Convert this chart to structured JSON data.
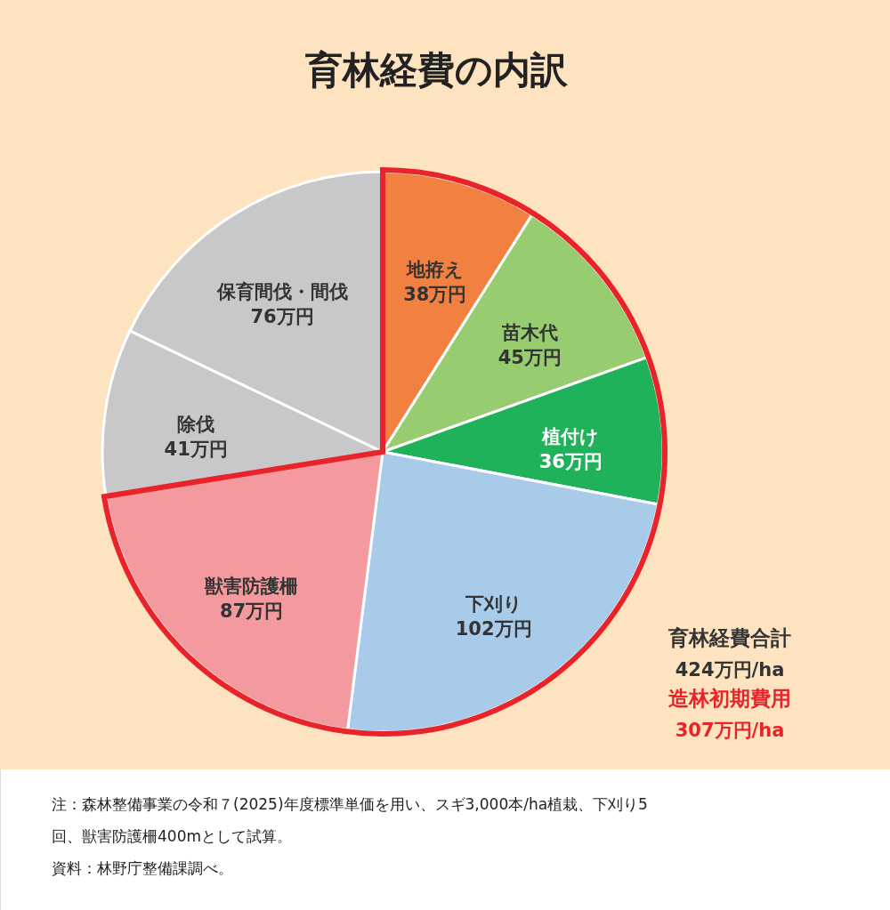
{
  "chart_data": {
    "type": "pie",
    "title": "育林経費の内訳",
    "categories": [
      "地拵え",
      "苗木代",
      "植付け",
      "下刈り",
      "獣害防護柵",
      "除伐",
      "保育間伐・間伐"
    ],
    "values": [
      38,
      45,
      36,
      102,
      87,
      41,
      76
    ],
    "value_labels": [
      "38万円",
      "45万円",
      "36万円",
      "102万円",
      "87万円",
      "41万円",
      "76万円"
    ],
    "colors": [
      "#f28040",
      "#97cc70",
      "#1fb25a",
      "#a9cbea",
      "#f4999d",
      "#c8c8ca",
      "#c8c8ca"
    ],
    "annotations": [
      "育林経費合計",
      "424万円/ha",
      "造林初期費用",
      "307万円/ha",
      "注：森林整備事業の令和７(2025)年度標準単価を用い、スギ3,000本/ha植栽、下刈り5回、獣害防護柵400mとして試算。",
      "資料：林野庁整備課調べ。"
    ]
  }
}
